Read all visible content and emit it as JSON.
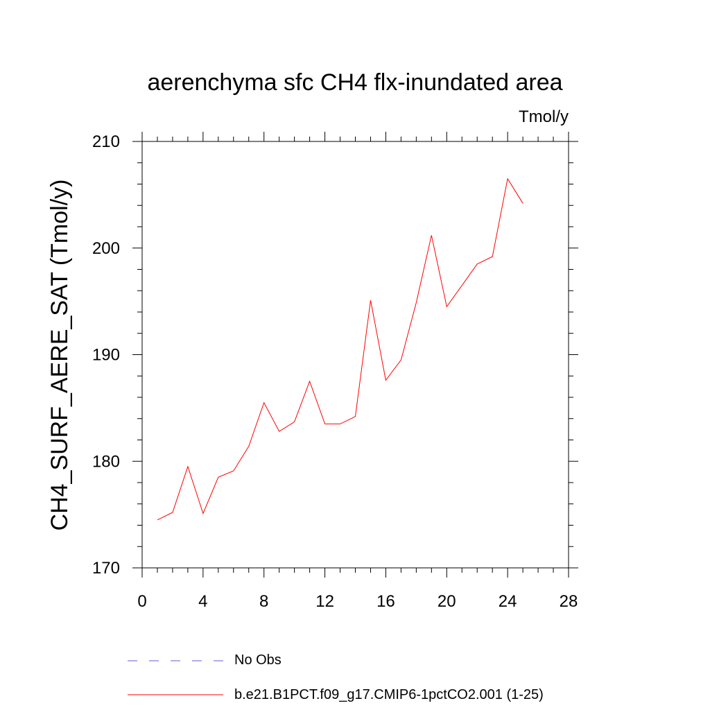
{
  "chart_data": {
    "type": "line",
    "title": "aerenchyma sfc CH4 flx-inundated area",
    "units_label": "Tmol/y",
    "ylabel": "CH4_SURF_AERE_SAT  (Tmol/y)",
    "xlabel": "",
    "xlim": [
      0,
      28
    ],
    "ylim": [
      170,
      210
    ],
    "x_ticks": [
      0,
      4,
      8,
      12,
      16,
      20,
      24,
      28
    ],
    "y_ticks": [
      170,
      180,
      190,
      200,
      210
    ],
    "x_minor_step": 1,
    "y_minor_step": 2,
    "grid": false,
    "legend_position": "bottom",
    "series": [
      {
        "name": "No Obs",
        "color": "#6a5acd",
        "dash": "dashed",
        "x": [],
        "y": []
      },
      {
        "name": "b.e21.B1PCT.f09_g17.CMIP6-1pctCO2.001 (1-25)",
        "color": "#ff0000",
        "dash": "solid",
        "x": [
          1,
          2,
          3,
          4,
          5,
          6,
          7,
          8,
          9,
          10,
          11,
          12,
          13,
          14,
          15,
          16,
          17,
          18,
          19,
          20,
          21,
          22,
          23,
          24,
          25
        ],
        "y": [
          174.5,
          175.2,
          179.5,
          175.1,
          178.5,
          179.1,
          181.4,
          185.5,
          182.8,
          183.7,
          187.5,
          183.5,
          183.5,
          184.2,
          195.1,
          187.6,
          189.5,
          194.9,
          201.2,
          194.5,
          196.5,
          198.5,
          199.2,
          206.5,
          204.2
        ]
      }
    ]
  }
}
